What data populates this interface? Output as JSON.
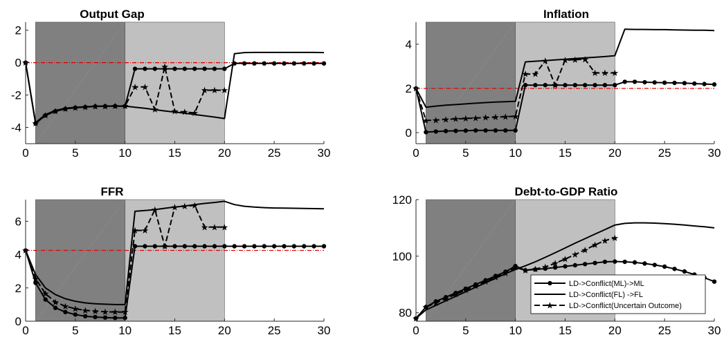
{
  "chart_data": [
    {
      "type": "line",
      "title": "Output Gap",
      "xlim": [
        0,
        30
      ],
      "ylim": [
        -5,
        2.5
      ],
      "xticks": [
        "0",
        "5",
        "10",
        "15",
        "20",
        "25",
        "30"
      ],
      "yticks": [
        "-4",
        "-2",
        "0",
        "2"
      ],
      "reference_line": 0,
      "shaded_regions": [
        {
          "from": 1,
          "to": 10,
          "color": "#808080"
        },
        {
          "from": 10,
          "to": 20,
          "color": "#c0c0c0"
        }
      ],
      "series": [
        {
          "x": [
            0,
            1,
            2,
            3,
            4,
            5,
            6,
            7,
            8,
            9,
            10,
            11,
            12,
            13,
            14,
            15,
            16,
            17,
            18,
            19,
            20,
            21,
            22,
            23,
            24,
            25,
            26,
            27,
            28,
            29,
            30
          ],
          "values": [
            0,
            -3.75,
            -3.25,
            -3.0,
            -2.85,
            -2.78,
            -2.74,
            -2.7,
            -2.69,
            -2.68,
            -2.68,
            -0.38,
            -0.38,
            -0.38,
            -0.38,
            -0.38,
            -0.38,
            -0.38,
            -0.38,
            -0.38,
            -0.38,
            -0.05,
            -0.05,
            -0.05,
            -0.05,
            -0.05,
            -0.05,
            -0.05,
            -0.05,
            -0.05,
            -0.05
          ]
        },
        {
          "x": [
            0,
            1,
            2,
            3,
            4,
            5,
            6,
            7,
            8,
            9,
            10,
            11,
            12,
            13,
            14,
            15,
            16,
            17,
            18,
            19,
            20,
            21,
            22,
            23,
            24,
            25,
            26,
            27,
            28,
            29,
            30
          ],
          "values": [
            0,
            -3.7,
            -3.2,
            -2.95,
            -2.82,
            -2.76,
            -2.72,
            -2.69,
            -2.68,
            -2.68,
            -2.68,
            -2.75,
            -2.82,
            -2.9,
            -2.98,
            -3.05,
            -3.12,
            -3.2,
            -3.28,
            -3.36,
            -3.45,
            0.55,
            0.62,
            0.63,
            0.63,
            0.63,
            0.63,
            0.63,
            0.63,
            0.63,
            0.62
          ]
        },
        {
          "x": [
            0,
            1,
            2,
            3,
            4,
            5,
            6,
            7,
            8,
            9,
            10,
            11,
            12,
            13,
            14,
            15,
            16,
            17,
            18,
            19,
            20
          ],
          "values": [
            0,
            -3.75,
            -3.25,
            -3.0,
            -2.85,
            -2.78,
            -2.74,
            -2.7,
            -2.69,
            -2.68,
            -2.68,
            -1.5,
            -1.5,
            -2.9,
            -0.25,
            -3.0,
            -3.05,
            -3.1,
            -1.7,
            -1.7,
            -1.7
          ]
        }
      ]
    },
    {
      "type": "line",
      "title": "Inflation",
      "xlim": [
        0,
        30
      ],
      "ylim": [
        -0.5,
        5
      ],
      "xticks": [
        "0",
        "5",
        "10",
        "15",
        "20",
        "25",
        "30"
      ],
      "yticks": [
        "0",
        "2",
        "4"
      ],
      "reference_line": 2,
      "shaded_regions": [
        {
          "from": 1,
          "to": 10,
          "color": "#808080"
        },
        {
          "from": 10,
          "to": 20,
          "color": "#c0c0c0"
        }
      ],
      "series": [
        {
          "x": [
            0,
            1,
            2,
            3,
            4,
            5,
            6,
            7,
            8,
            9,
            10,
            11,
            12,
            13,
            14,
            15,
            16,
            17,
            18,
            19,
            20,
            21,
            22,
            23,
            24,
            25,
            26,
            27,
            28,
            29,
            30
          ],
          "values": [
            2.0,
            0.02,
            0.05,
            0.07,
            0.08,
            0.09,
            0.1,
            0.1,
            0.1,
            0.1,
            0.1,
            2.15,
            2.15,
            2.15,
            2.15,
            2.15,
            2.15,
            2.15,
            2.15,
            2.15,
            2.15,
            2.3,
            2.3,
            2.28,
            2.27,
            2.26,
            2.25,
            2.24,
            2.22,
            2.2,
            2.18
          ]
        },
        {
          "x": [
            0,
            1,
            2,
            3,
            4,
            5,
            6,
            7,
            8,
            9,
            10,
            11,
            12,
            13,
            14,
            15,
            16,
            17,
            18,
            19,
            20,
            21,
            22,
            23,
            24,
            25,
            26,
            27,
            28,
            29,
            30
          ],
          "values": [
            2.0,
            1.15,
            1.2,
            1.24,
            1.27,
            1.3,
            1.33,
            1.36,
            1.38,
            1.4,
            1.42,
            3.2,
            3.23,
            3.26,
            3.29,
            3.32,
            3.35,
            3.38,
            3.41,
            3.44,
            3.48,
            4.68,
            4.67,
            4.67,
            4.66,
            4.66,
            4.65,
            4.64,
            4.63,
            4.63,
            4.62
          ]
        },
        {
          "x": [
            0,
            1,
            2,
            3,
            4,
            5,
            6,
            7,
            8,
            9,
            10,
            11,
            12,
            13,
            14,
            15,
            16,
            17,
            18,
            19,
            20
          ],
          "values": [
            2.0,
            0.55,
            0.57,
            0.6,
            0.62,
            0.64,
            0.66,
            0.68,
            0.7,
            0.72,
            0.74,
            2.65,
            2.65,
            3.25,
            2.15,
            3.28,
            3.3,
            3.32,
            2.7,
            2.7,
            2.7
          ]
        }
      ]
    },
    {
      "type": "line",
      "title": "FFR",
      "xlim": [
        0,
        30
      ],
      "ylim": [
        0,
        7.3
      ],
      "xticks": [
        "0",
        "5",
        "10",
        "15",
        "20",
        "25",
        "30"
      ],
      "yticks": [
        "0",
        "2",
        "4",
        "6"
      ],
      "reference_line": 4.25,
      "shaded_regions": [
        {
          "from": 1,
          "to": 10,
          "color": "#808080"
        },
        {
          "from": 10,
          "to": 20,
          "color": "#c0c0c0"
        }
      ],
      "series": [
        {
          "x": [
            0,
            1,
            2,
            3,
            4,
            5,
            6,
            7,
            8,
            9,
            10,
            11,
            12,
            13,
            14,
            15,
            16,
            17,
            18,
            19,
            20,
            21,
            22,
            23,
            24,
            25,
            26,
            27,
            28,
            29,
            30
          ],
          "values": [
            4.25,
            2.3,
            1.3,
            0.8,
            0.55,
            0.4,
            0.3,
            0.25,
            0.22,
            0.2,
            0.2,
            4.5,
            4.5,
            4.5,
            4.5,
            4.5,
            4.5,
            4.5,
            4.5,
            4.5,
            4.5,
            4.5,
            4.5,
            4.5,
            4.5,
            4.5,
            4.5,
            4.5,
            4.5,
            4.5,
            4.5
          ]
        },
        {
          "x": [
            0,
            1,
            2,
            3,
            4,
            5,
            6,
            7,
            8,
            9,
            10,
            11,
            12,
            13,
            14,
            15,
            16,
            17,
            18,
            19,
            20,
            21,
            22,
            23,
            24,
            25,
            26,
            27,
            28,
            29,
            30
          ],
          "values": [
            4.25,
            2.8,
            2.0,
            1.6,
            1.35,
            1.2,
            1.1,
            1.05,
            1.02,
            1.0,
            1.0,
            6.6,
            6.65,
            6.7,
            6.78,
            6.85,
            6.92,
            7.0,
            7.07,
            7.13,
            7.2,
            7.0,
            6.9,
            6.85,
            6.82,
            6.8,
            6.79,
            6.78,
            6.77,
            6.76,
            6.75
          ]
        },
        {
          "x": [
            0,
            1,
            2,
            3,
            4,
            5,
            6,
            7,
            8,
            9,
            10,
            11,
            12,
            13,
            14,
            15,
            16,
            17,
            18,
            19,
            20
          ],
          "values": [
            4.25,
            2.55,
            1.65,
            1.15,
            0.9,
            0.75,
            0.65,
            0.6,
            0.57,
            0.55,
            0.55,
            5.45,
            5.45,
            6.7,
            4.5,
            6.85,
            6.9,
            6.95,
            5.65,
            5.65,
            5.65
          ]
        }
      ]
    },
    {
      "type": "line",
      "title": "Debt-to-GDP Ratio",
      "xlim": [
        0,
        30
      ],
      "ylim": [
        77,
        120
      ],
      "xticks": [
        "0",
        "5",
        "10",
        "15",
        "20",
        "25",
        "30"
      ],
      "yticks": [
        "80",
        "100",
        "120"
      ],
      "shaded_regions": [
        {
          "from": 1,
          "to": 10,
          "color": "#808080"
        },
        {
          "from": 10,
          "to": 20,
          "color": "#c0c0c0"
        }
      ],
      "legend": {
        "position": "bottom-right",
        "entries": [
          "LD->Conflict(ML)->ML",
          "LD->Conflict(FL) ->FL",
          "LD->Conflict(Uncertain Outcome)"
        ]
      },
      "series": [
        {
          "name": "LD->Conflict(ML)->ML",
          "x": [
            0,
            1,
            2,
            3,
            4,
            5,
            6,
            7,
            8,
            9,
            10,
            11,
            12,
            13,
            14,
            15,
            16,
            17,
            18,
            19,
            20,
            21,
            22,
            23,
            24,
            25,
            26,
            27,
            28,
            29,
            30
          ],
          "values": [
            78,
            82,
            84,
            85.5,
            87,
            88.5,
            90,
            91.5,
            93,
            94.5,
            96.5,
            95,
            95.3,
            95.6,
            96,
            96.4,
            96.8,
            97.2,
            97.6,
            98,
            98.1,
            98,
            97.8,
            97.4,
            96.9,
            96.3,
            95.5,
            94.6,
            93.5,
            92.4,
            91
          ]
        },
        {
          "name": "LD->Conflict(FL) ->FL",
          "x": [
            0,
            1,
            2,
            3,
            4,
            5,
            6,
            7,
            8,
            9,
            10,
            11,
            12,
            13,
            14,
            15,
            16,
            17,
            18,
            19,
            20,
            21,
            22,
            23,
            24,
            25,
            26,
            27,
            28,
            29,
            30
          ],
          "values": [
            78,
            81,
            82.6,
            84.2,
            85.8,
            87.4,
            89,
            90.6,
            92.2,
            93.8,
            95.3,
            96.6,
            98,
            99.6,
            101.2,
            102.9,
            104.6,
            106.2,
            107.8,
            109.4,
            111,
            111.6,
            111.8,
            111.8,
            111.7,
            111.5,
            111.3,
            111.0,
            110.7,
            110.4,
            110.0
          ]
        },
        {
          "name": "LD->Conflict(Uncertain Outcome)",
          "x": [
            0,
            1,
            2,
            3,
            4,
            5,
            6,
            7,
            8,
            9,
            10,
            11,
            12,
            13,
            14,
            15,
            16,
            17,
            18,
            19,
            20
          ],
          "values": [
            78,
            82,
            83.5,
            85,
            86.5,
            88,
            89.5,
            91,
            92.5,
            94,
            96,
            95,
            95.5,
            96.2,
            97.5,
            99,
            100.6,
            102.2,
            104,
            105.5,
            106.5
          ]
        }
      ]
    }
  ]
}
